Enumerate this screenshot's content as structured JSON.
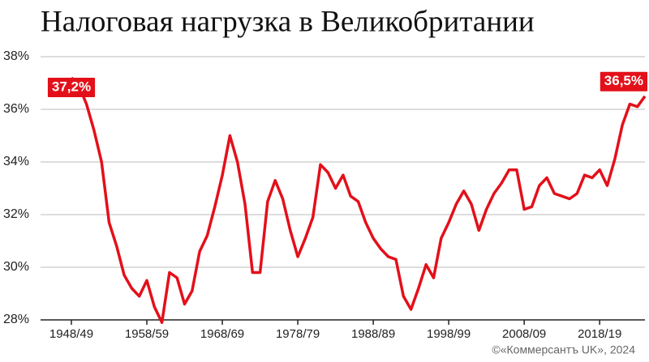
{
  "chart_data": {
    "type": "line",
    "title": "Налоговая нагрузка в Великобритании",
    "categories": [
      "1948/49",
      null,
      null,
      null,
      null,
      null,
      null,
      null,
      null,
      null,
      "1958/59",
      null,
      null,
      null,
      null,
      null,
      null,
      null,
      null,
      null,
      "1968/69",
      null,
      null,
      null,
      null,
      null,
      null,
      null,
      null,
      null,
      "1978/79",
      null,
      null,
      null,
      null,
      null,
      null,
      null,
      null,
      null,
      "1988/89",
      null,
      null,
      null,
      null,
      null,
      null,
      null,
      null,
      null,
      "1998/99",
      null,
      null,
      null,
      null,
      null,
      null,
      null,
      null,
      null,
      "2008/09",
      null,
      null,
      null,
      null,
      null,
      null,
      null,
      null,
      null,
      "2018/19",
      null,
      null,
      null,
      null,
      null,
      null
    ],
    "values": [
      37.2,
      36.9,
      36.2,
      35.2,
      34.0,
      31.7,
      30.8,
      29.7,
      29.2,
      28.9,
      29.5,
      28.5,
      27.9,
      29.8,
      29.6,
      28.6,
      29.1,
      30.6,
      31.2,
      32.3,
      33.5,
      35.0,
      34.0,
      32.4,
      29.8,
      29.8,
      32.5,
      33.3,
      32.6,
      31.4,
      30.4,
      31.1,
      31.9,
      33.9,
      33.6,
      33.0,
      33.5,
      32.7,
      32.5,
      31.7,
      31.1,
      30.7,
      30.4,
      30.3,
      28.9,
      28.4,
      29.2,
      30.1,
      29.6,
      31.1,
      31.7,
      32.4,
      32.9,
      32.4,
      31.4,
      32.2,
      32.8,
      33.2,
      33.7,
      33.7,
      32.2,
      32.3,
      33.1,
      33.4,
      32.8,
      32.7,
      32.6,
      32.8,
      33.5,
      33.4,
      33.7,
      33.1,
      34.1,
      35.4,
      36.2,
      36.1,
      36.5
    ],
    "value_labels": [
      "37,2%",
      null,
      null,
      null,
      null,
      null,
      null,
      null,
      null,
      null,
      null,
      null,
      null,
      null,
      null,
      null,
      null,
      null,
      null,
      null,
      null,
      null,
      null,
      null,
      null,
      null,
      null,
      null,
      null,
      null,
      null,
      null,
      null,
      null,
      null,
      null,
      null,
      null,
      null,
      null,
      null,
      null,
      null,
      null,
      null,
      null,
      null,
      null,
      null,
      null,
      null,
      null,
      null,
      null,
      null,
      null,
      null,
      null,
      null,
      null,
      null,
      null,
      null,
      null,
      null,
      null,
      null,
      null,
      null,
      null,
      null,
      null,
      null,
      null,
      null,
      null,
      "36,5%"
    ],
    "color": "#e3101a",
    "ylim": [
      28,
      38
    ],
    "yticks": [
      {
        "value": 28,
        "label": "28%"
      },
      {
        "value": 30,
        "label": "30%"
      },
      {
        "value": 32,
        "label": "32%"
      },
      {
        "value": 34,
        "label": "34%"
      },
      {
        "value": 36,
        "label": "36%"
      },
      {
        "value": 38,
        "label": "38%"
      }
    ],
    "grid": true,
    "source": "©«Коммерсантъ UK», 2024"
  }
}
